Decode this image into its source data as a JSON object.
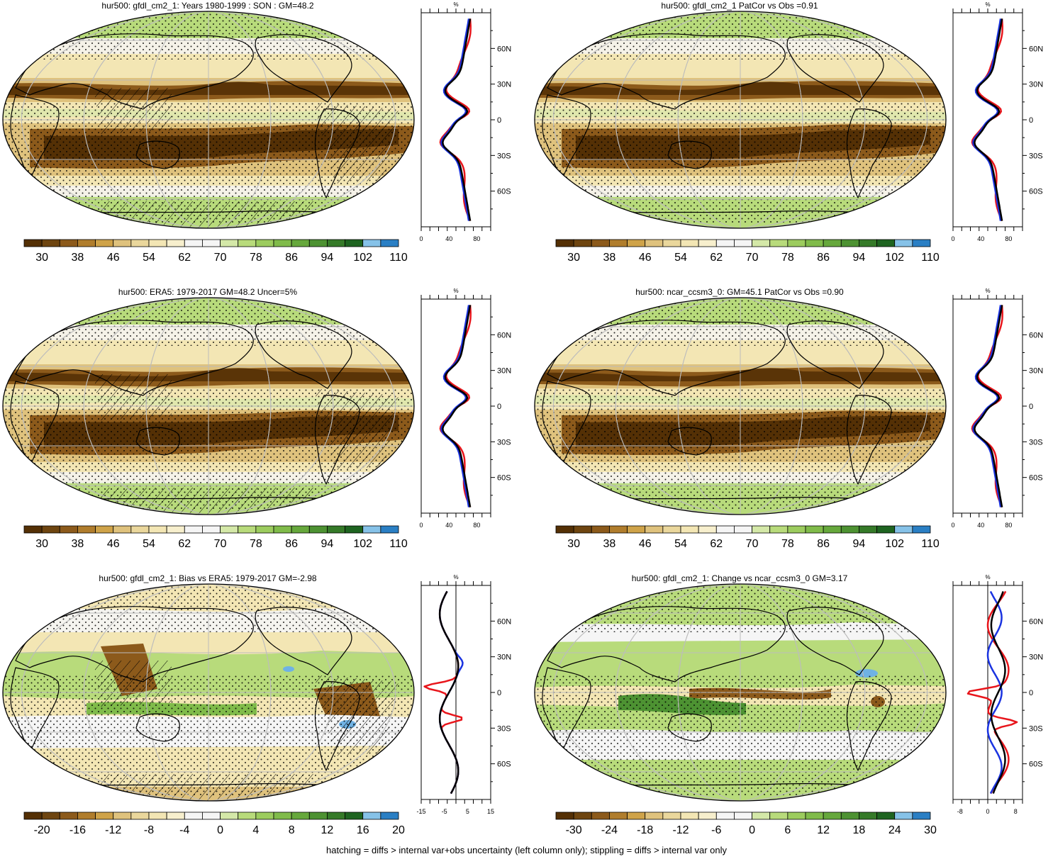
{
  "colors": {
    "abs_scale": [
      "#543005",
      "#6e4510",
      "#8c5a1b",
      "#b07d2c",
      "#cfa349",
      "#dfc27d",
      "#ead79c",
      "#f3e6b4",
      "#f7efcd",
      "#f5f5f5",
      "#f5f5f5",
      "#d4e8a8",
      "#b8db7b",
      "#9ccc5e",
      "#80bb4a",
      "#66a83c",
      "#4d9232",
      "#357a28",
      "#1e6420",
      "#86c2e8",
      "#2a7fc4"
    ],
    "diff_scale": [
      "#543005",
      "#6e4510",
      "#8c5a1b",
      "#b07d2c",
      "#cfa349",
      "#dfc27d",
      "#ead79c",
      "#f3e6b4",
      "#f7efcd",
      "#f5f5f5",
      "#f5f5f5",
      "#d4e8a8",
      "#b8db7b",
      "#9ccc5e",
      "#80bb4a",
      "#66a83c",
      "#4d9232",
      "#357a28",
      "#1e6420",
      "#86c2e8",
      "#2a7fc4"
    ],
    "line_model": "#e8151b",
    "line_obs": "#1a33e0",
    "line_mean": "#000000"
  },
  "panels": [
    {
      "id": "p1",
      "title": "hur500: gfdl_cm2_1: Years 1980-1999 : SON : GM=48.2",
      "type": "abs",
      "colorbar_labels": [
        "30",
        "38",
        "46",
        "54",
        "62",
        "70",
        "78",
        "86",
        "94",
        "102",
        "110"
      ],
      "profile": {
        "unit": "%",
        "xticks": [
          "0",
          "40",
          "80"
        ],
        "xlim": [
          0,
          100
        ],
        "lat_labels": [
          "60N",
          "30N",
          "0",
          "30S",
          "60S"
        ]
      }
    },
    {
      "id": "p2",
      "title": "hur500: gfdl_cm2_1 PatCor vs Obs =0.91",
      "type": "abs",
      "colorbar_labels": [
        "30",
        "38",
        "46",
        "54",
        "62",
        "70",
        "78",
        "86",
        "94",
        "102",
        "110"
      ],
      "profile": {
        "unit": "%",
        "xticks": [
          "0",
          "40",
          "80"
        ],
        "xlim": [
          0,
          100
        ],
        "lat_labels": [
          "60N",
          "30N",
          "0",
          "30S",
          "60S"
        ]
      }
    },
    {
      "id": "p3",
      "title": "hur500: ERA5: 1979-2017 GM=48.2 Uncer=5%",
      "type": "abs",
      "colorbar_labels": [
        "30",
        "38",
        "46",
        "54",
        "62",
        "70",
        "78",
        "86",
        "94",
        "102",
        "110"
      ],
      "profile": {
        "unit": "%",
        "xticks": [
          "0",
          "40",
          "80"
        ],
        "xlim": [
          0,
          100
        ],
        "lat_labels": [
          "60N",
          "30N",
          "0",
          "30S",
          "60S"
        ]
      }
    },
    {
      "id": "p4",
      "title": "hur500: ncar_ccsm3_0: GM=45.1 PatCor vs Obs =0.90",
      "type": "abs",
      "colorbar_labels": [
        "30",
        "38",
        "46",
        "54",
        "62",
        "70",
        "78",
        "86",
        "94",
        "102",
        "110"
      ],
      "profile": {
        "unit": "%",
        "xticks": [
          "0",
          "40",
          "80"
        ],
        "xlim": [
          0,
          100
        ],
        "lat_labels": [
          "60N",
          "30N",
          "0",
          "30S",
          "60S"
        ]
      }
    },
    {
      "id": "p5",
      "title": "hur500: gfdl_cm2_1: Bias vs ERA5: 1979-2017  GM=-2.98",
      "type": "bias",
      "colorbar_labels": [
        "-20",
        "-16",
        "-12",
        "-8",
        "-4",
        "0",
        "4",
        "8",
        "12",
        "16",
        "20"
      ],
      "profile": {
        "unit": "%",
        "xticks": [
          "-15",
          "-5",
          "5",
          "15"
        ],
        "xlim": [
          -15,
          15
        ],
        "lat_labels": [
          "60N",
          "30N",
          "0",
          "30S",
          "60S"
        ]
      }
    },
    {
      "id": "p6",
      "title": "hur500: gfdl_cm2_1: Change vs ncar_ccsm3_0 GM=3.17",
      "type": "change",
      "colorbar_labels": [
        "-30",
        "-24",
        "-18",
        "-12",
        "-6",
        "0",
        "6",
        "12",
        "18",
        "24",
        "30"
      ],
      "profile": {
        "unit": "%",
        "xticks": [
          "-8",
          "0",
          "8"
        ],
        "xlim": [
          -10,
          10
        ],
        "lat_labels": [
          "60N",
          "30N",
          "0",
          "30S",
          "60S"
        ]
      }
    }
  ],
  "footer": "hatching = diffs > internal var+obs uncertainty (left column only); stippling = diffs > internal var only"
}
